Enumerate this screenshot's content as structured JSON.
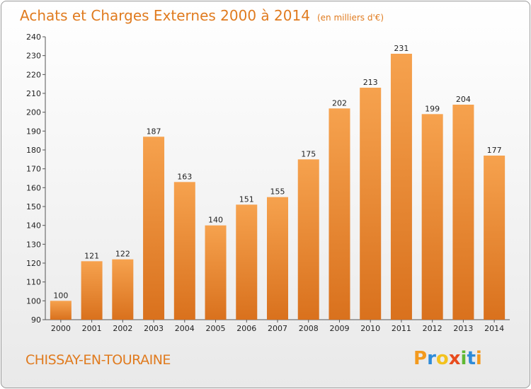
{
  "header": {
    "title": "Achats et Charges Externes 2000 à 2014",
    "subtitle": "(en milliers d'€)"
  },
  "footer": {
    "commune": "CHISSAY-EN-TOURAINE",
    "logo_letters": [
      "P",
      "r",
      "o",
      "x",
      "i",
      "t",
      "i"
    ],
    "logo_colors": [
      "#f39a1e",
      "#2e8bd8",
      "#f3c21e",
      "#e84c1e",
      "#5fb833",
      "#2e8bd8",
      "#f39a1e"
    ]
  },
  "chart_data": {
    "type": "bar",
    "categories": [
      "2000",
      "2001",
      "2002",
      "2003",
      "2004",
      "2005",
      "2006",
      "2007",
      "2008",
      "2009",
      "2010",
      "2011",
      "2012",
      "2013",
      "2014"
    ],
    "values": [
      100,
      121,
      122,
      187,
      163,
      140,
      151,
      155,
      175,
      202,
      213,
      231,
      199,
      204,
      177
    ],
    "ylim": [
      90,
      240
    ],
    "yticks": [
      90,
      100,
      110,
      120,
      130,
      140,
      150,
      160,
      170,
      180,
      190,
      200,
      210,
      220,
      230,
      240
    ],
    "grid": false,
    "bar_color_top": "#f6a24e",
    "bar_color_bottom": "#d9711d"
  }
}
